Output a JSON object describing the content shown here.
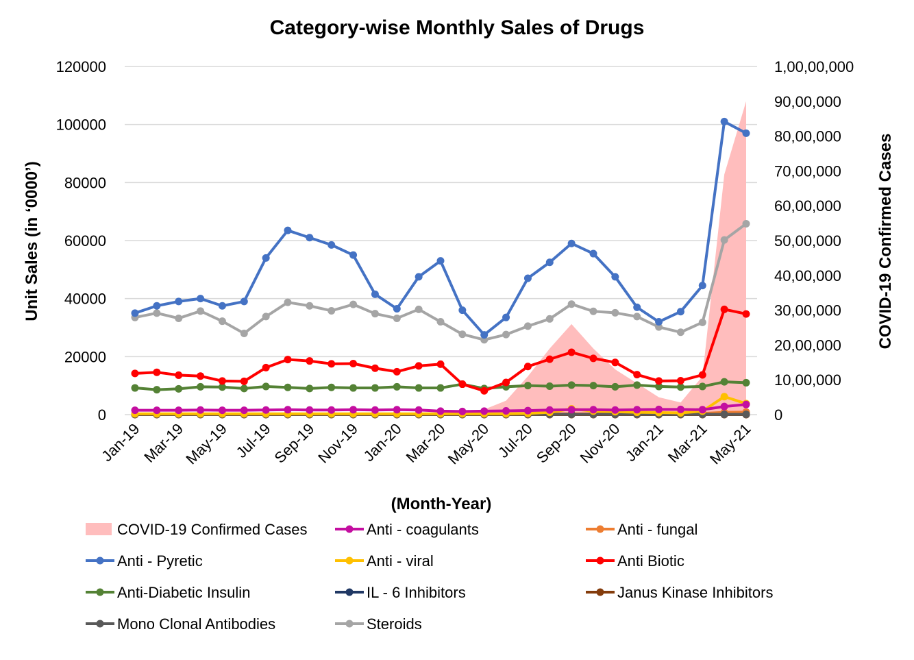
{
  "chart_data": {
    "type": "line",
    "title": "Category-wise Monthly Sales of Drugs",
    "xlabel": "(Month-Year)",
    "ylabel": "Unit Sales (in ‘0000’)",
    "y2label": "COVID-19 Confirmed Cases",
    "ylim": [
      0,
      120000
    ],
    "y2lim": [
      0,
      10000000
    ],
    "yticks": [
      "0",
      "20000",
      "40000",
      "60000",
      "80000",
      "100000",
      "120000"
    ],
    "y2ticks": [
      "0",
      "10,00,000",
      "20,00,000",
      "30,00,000",
      "40,00,000",
      "50,00,000",
      "60,00,000",
      "70,00,000",
      "80,00,000",
      "90,00,000",
      "1,00,00,000"
    ],
    "categories": [
      "Jan-19",
      "Feb-19",
      "Mar-19",
      "Apr-19",
      "May-19",
      "Jun-19",
      "Jul-19",
      "Aug-19",
      "Sep-19",
      "Oct-19",
      "Nov-19",
      "Dec-19",
      "Jan-20",
      "Feb-20",
      "Mar-20",
      "Apr-20",
      "May-20",
      "Jun-20",
      "Jul-20",
      "Aug-20",
      "Sep-20",
      "Oct-20",
      "Nov-20",
      "Dec-20",
      "Jan-21",
      "Feb-21",
      "Mar-21",
      "Apr-21",
      "May-21"
    ],
    "tick_labels": [
      "Jan-19",
      "Mar-19",
      "May-19",
      "Jul-19",
      "Sep-19",
      "Nov-19",
      "Jan-20",
      "Mar-20",
      "May-20",
      "Jul-20",
      "Sep-20",
      "Nov-20",
      "Jan-21",
      "Mar-21",
      "May-21"
    ],
    "area_series": {
      "name": "COVID-19 Confirmed Cases",
      "axis": "right",
      "color": "#ffbdbd",
      "values": [
        0,
        0,
        0,
        0,
        0,
        0,
        0,
        0,
        0,
        0,
        0,
        0,
        0,
        0,
        1500,
        40000,
        150000,
        400000,
        1100000,
        1900000,
        2600000,
        1900000,
        1300000,
        900000,
        500000,
        350000,
        1100000,
        6900000,
        9000000
      ]
    },
    "series": [
      {
        "name": "Anti - coagulants",
        "color": "#c40ea0",
        "values": [
          1500,
          1500,
          1500,
          1600,
          1500,
          1500,
          1600,
          1700,
          1600,
          1600,
          1700,
          1600,
          1700,
          1600,
          1200,
          1100,
          1200,
          1300,
          1400,
          1600,
          1700,
          1700,
          1600,
          1700,
          1800,
          1800,
          1700,
          2800,
          3500
        ]
      },
      {
        "name": "Anti - fungal",
        "color": "#ed7d31",
        "values": [
          200,
          200,
          200,
          200,
          200,
          200,
          200,
          200,
          200,
          200,
          200,
          200,
          200,
          200,
          200,
          200,
          200,
          200,
          200,
          300,
          300,
          300,
          300,
          300,
          300,
          300,
          400,
          800,
          900
        ]
      },
      {
        "name": "Anti - Pyretic",
        "color": "#4472c4",
        "values": [
          35000,
          37500,
          39000,
          40000,
          37500,
          39000,
          54000,
          63500,
          61000,
          58500,
          55000,
          41500,
          36500,
          47500,
          53000,
          36000,
          27500,
          33500,
          47000,
          52500,
          59000,
          55500,
          47500,
          37000,
          32000,
          35500,
          44500,
          101000,
          97000
        ]
      },
      {
        "name": "Anti - viral",
        "color": "#ffc000",
        "values": [
          300,
          300,
          300,
          300,
          300,
          300,
          300,
          300,
          300,
          300,
          300,
          300,
          300,
          300,
          300,
          300,
          300,
          300,
          400,
          800,
          2000,
          1200,
          1000,
          800,
          700,
          600,
          1200,
          6200,
          3800
        ]
      },
      {
        "name": "Anti Biotic",
        "color": "#ff0000",
        "values": [
          14200,
          14600,
          13600,
          13300,
          11600,
          11500,
          16200,
          19000,
          18500,
          17500,
          17600,
          16000,
          14800,
          16800,
          17400,
          10500,
          8200,
          11100,
          16600,
          19100,
          21500,
          19400,
          18000,
          13800,
          11600,
          11700,
          13700,
          36300,
          34700
        ]
      },
      {
        "name": "Anti-Diabetic Insulin",
        "color": "#548235",
        "values": [
          9200,
          8600,
          8900,
          9600,
          9500,
          9000,
          9700,
          9400,
          9000,
          9400,
          9200,
          9200,
          9600,
          9200,
          9200,
          10500,
          9000,
          9600,
          10000,
          9800,
          10200,
          10000,
          9600,
          10200,
          9700,
          9500,
          9700,
          11300,
          11000
        ]
      },
      {
        "name": "IL - 6 Inhibitors",
        "color": "#203864",
        "values": [
          100,
          100,
          100,
          100,
          100,
          100,
          100,
          100,
          100,
          100,
          100,
          100,
          100,
          100,
          100,
          100,
          100,
          100,
          100,
          100,
          100,
          100,
          100,
          100,
          100,
          100,
          100,
          100,
          100
        ]
      },
      {
        "name": "Janus Kinase Inhibitors",
        "color": "#843c0c",
        "values": [
          0,
          0,
          0,
          0,
          0,
          0,
          0,
          0,
          0,
          0,
          0,
          0,
          0,
          0,
          0,
          0,
          0,
          0,
          0,
          0,
          0,
          0,
          0,
          0,
          0,
          0,
          0,
          0,
          0
        ]
      },
      {
        "name": "Mono Clonal Antibodies",
        "color": "#595959",
        "values": [
          100,
          100,
          100,
          100,
          100,
          100,
          100,
          100,
          100,
          100,
          100,
          100,
          100,
          100,
          100,
          100,
          100,
          100,
          100,
          100,
          100,
          100,
          100,
          100,
          100,
          100,
          100,
          100,
          100
        ]
      },
      {
        "name": "Steroids",
        "color": "#a5a5a5",
        "values": [
          33500,
          35000,
          33200,
          35700,
          32200,
          28000,
          33800,
          38700,
          37500,
          35800,
          38000,
          34800,
          33200,
          36300,
          32000,
          27700,
          25800,
          27600,
          30500,
          33000,
          38100,
          35600,
          35100,
          33800,
          30200,
          28400,
          31800,
          60200,
          65800
        ]
      }
    ],
    "legend": {
      "position": "bottom",
      "entries": [
        "COVID-19 Confirmed Cases",
        "Anti - coagulants",
        "Anti - fungal",
        "Anti - Pyretic",
        "Anti - viral",
        "Anti Biotic",
        "Anti-Diabetic Insulin",
        "IL - 6 Inhibitors",
        "Janus Kinase Inhibitors",
        "Mono Clonal Antibodies",
        "Steroids"
      ]
    },
    "grid": true
  }
}
